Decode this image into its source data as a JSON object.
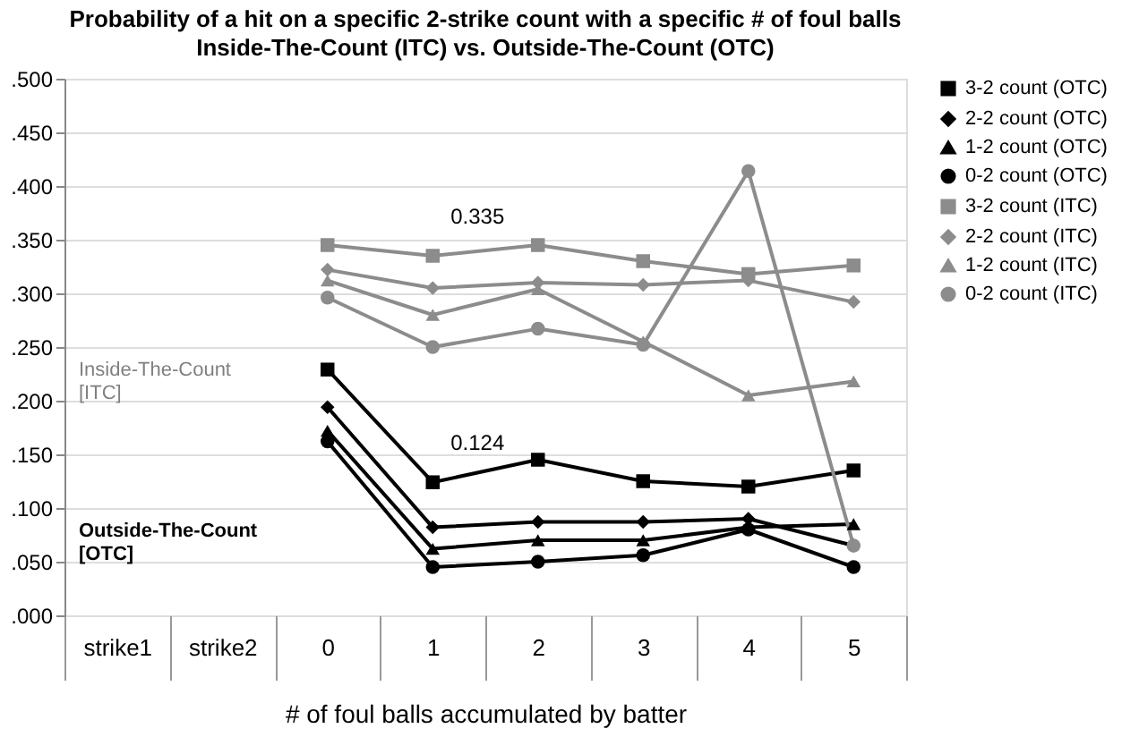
{
  "chart_data": {
    "type": "line",
    "title": "Probability of a hit on a specific 2-strike count with a specific # of foul balls",
    "subtitle": "Inside-The-Count (ITC) vs. Outside-The-Count (OTC)",
    "xlabel": "# of foul balls accumulated by batter",
    "categories": [
      "strike1",
      "strike2",
      "0",
      "1",
      "2",
      "3",
      "4",
      "5"
    ],
    "ylim": [
      0,
      0.5
    ],
    "yticks": [
      {
        "value": 0,
        "label": ".000"
      },
      {
        "value": 0.05,
        "label": ".050"
      },
      {
        "value": 0.1,
        "label": ".100"
      },
      {
        "value": 0.15,
        "label": ".150"
      },
      {
        "value": 0.2,
        "label": ".200"
      },
      {
        "value": 0.25,
        "label": ".250"
      },
      {
        "value": 0.3,
        "label": ".300"
      },
      {
        "value": 0.35,
        "label": ".350"
      },
      {
        "value": 0.4,
        "label": ".400"
      },
      {
        "value": 0.45,
        "label": ".450"
      },
      {
        "value": 0.5,
        "label": ".500"
      }
    ],
    "grid": "y",
    "legend": "right",
    "line_style": "solid",
    "series": [
      {
        "name": "3-2 count (OTC)",
        "color": "#000000",
        "marker": "square",
        "values": [
          null,
          null,
          0.229,
          0.124,
          0.145,
          0.125,
          0.12,
          0.135
        ]
      },
      {
        "name": "2-2 count (OTC)",
        "color": "#000000",
        "marker": "diamond",
        "values": [
          null,
          null,
          0.194,
          0.082,
          0.087,
          0.087,
          0.09,
          0.065
        ]
      },
      {
        "name": "1-2 count (OTC)",
        "color": "#000000",
        "marker": "triangle",
        "values": [
          null,
          null,
          0.172,
          0.062,
          0.07,
          0.07,
          0.082,
          0.085
        ]
      },
      {
        "name": "0-2 count (OTC)",
        "color": "#000000",
        "marker": "circle",
        "values": [
          null,
          null,
          0.162,
          0.045,
          0.05,
          0.056,
          0.08,
          0.045
        ]
      },
      {
        "name": "3-2 count (ITC)",
        "color": "#8c8c8c",
        "marker": "square",
        "values": [
          null,
          null,
          0.345,
          0.335,
          0.345,
          0.33,
          0.318,
          0.326
        ]
      },
      {
        "name": "2-2 count (ITC)",
        "color": "#8c8c8c",
        "marker": "diamond",
        "values": [
          null,
          null,
          0.322,
          0.305,
          0.31,
          0.308,
          0.312,
          0.292
        ]
      },
      {
        "name": "1-2 count (ITC)",
        "color": "#8c8c8c",
        "marker": "triangle",
        "values": [
          null,
          null,
          0.312,
          0.28,
          0.304,
          0.255,
          0.205,
          0.218
        ]
      },
      {
        "name": "0-2 count (ITC)",
        "color": "#8c8c8c",
        "marker": "circle",
        "values": [
          null,
          null,
          0.296,
          0.25,
          0.267,
          0.252,
          0.414,
          0.065
        ]
      }
    ],
    "annotations": [
      {
        "text": "0.335",
        "x": "1",
        "y": 0.335
      },
      {
        "text": "0.124",
        "x": "1",
        "y": 0.124
      },
      "Inside-The-Count [ITC]",
      "Outside-The-Count [OTC]"
    ]
  }
}
